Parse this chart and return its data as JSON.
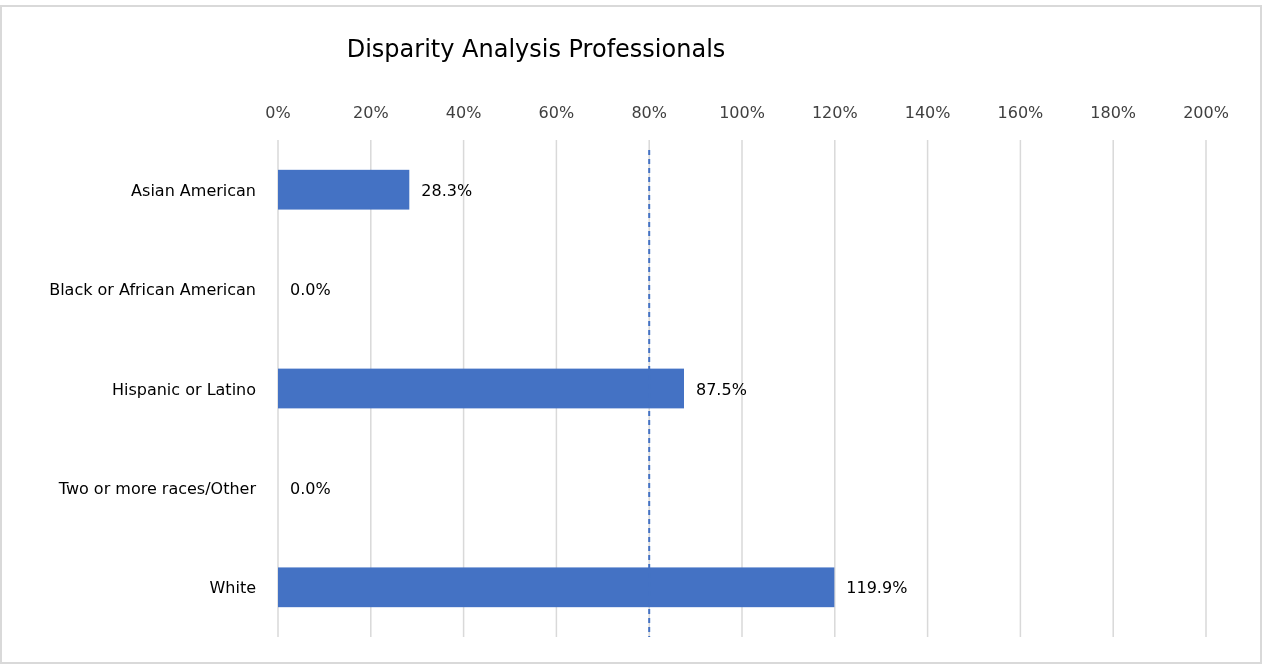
{
  "chart_data": {
    "type": "bar",
    "orientation": "horizontal",
    "title": "Disparity Analysis Professionals",
    "categories": [
      "Asian American",
      "Black or African American",
      "Hispanic or Latino",
      "Two or more races/Other",
      "White"
    ],
    "values": [
      28.3,
      0,
      87.5,
      0,
      119.9
    ],
    "value_labels": [
      "28.3%",
      "0.0%",
      "87.5%",
      "0.0%",
      "119.9%"
    ],
    "color": "#4472c4",
    "xlim": [
      0,
      200
    ],
    "xticks": [
      {
        "value": 0,
        "label": "0%"
      },
      {
        "value": 20,
        "label": "20%"
      },
      {
        "value": 40,
        "label": "40%"
      },
      {
        "value": 60,
        "label": "60%"
      },
      {
        "value": 80,
        "label": "80%"
      },
      {
        "value": 100,
        "label": "100%"
      },
      {
        "value": 120,
        "label": "120%"
      },
      {
        "value": 140,
        "label": "140%"
      },
      {
        "value": 160,
        "label": "160%"
      },
      {
        "value": 180,
        "label": "180%"
      },
      {
        "value": 200,
        "label": "200%"
      }
    ],
    "grid": "x",
    "ref_lines": [
      {
        "axis": "x",
        "value": 80,
        "color": "#4472c4",
        "line_style": "dashed"
      }
    ]
  }
}
